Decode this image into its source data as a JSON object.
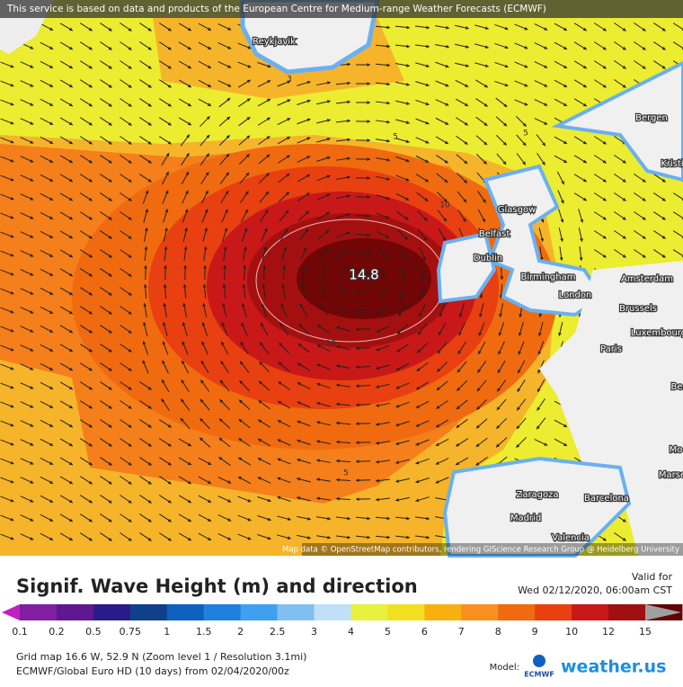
{
  "banner": "This service is based on data and products of the European Centre for Medium-range Weather Forecasts (ECMWF)",
  "map": {
    "cities": [
      "Reykjavik",
      "Bergen",
      "Kristi",
      "Glasgow",
      "Belfast",
      "Dublin",
      "Birmingham",
      "London",
      "Amsterdam",
      "Brussels",
      "Luxembourg",
      "Paris",
      "Be",
      "Mo",
      "Marse",
      "Zaragoza",
      "Barcelona",
      "Madrid",
      "Valencia"
    ],
    "contour_labels": [
      "3",
      "5",
      "5",
      "10",
      "10",
      "5"
    ],
    "max_label": "14.8",
    "attribution": "Map data © OpenStreetMap contributors, rendering GIScience Research Group @ Heidelberg University"
  },
  "legend": {
    "title": "Signif. Wave Height (m) and direction",
    "valid_label": "Valid for",
    "valid_time": "Wed 02/12/2020, 06:00am CST",
    "labels": [
      "0.1",
      "0.2",
      "0.5",
      "0.75",
      "1",
      "1.5",
      "2",
      "2.5",
      "3",
      "4",
      "5",
      "6",
      "7",
      "8",
      "9",
      "10",
      "12",
      "15"
    ],
    "colors": [
      "#c020c0",
      "#8020a0",
      "#601890",
      "#2a1a8a",
      "#10408a",
      "#1060c0",
      "#2080e0",
      "#40a0f0",
      "#80c0f0",
      "#c0e0f8",
      "#e8f040",
      "#f0e020",
      "#f8b010",
      "#f89020",
      "#f06a10",
      "#e84010",
      "#c81818",
      "#a01010",
      "#600404",
      "#a0a0a0"
    ]
  },
  "footer": {
    "line1": "Grid map 16.6 W, 52.9 N (Zoom level 1 / Resolution 3.1mi)",
    "line2": "ECMWF/Global Euro HD (10 days)  from  02/04/2020/00z",
    "model_label": "Model:",
    "model": "ECMWF",
    "brand": "weather.us"
  }
}
